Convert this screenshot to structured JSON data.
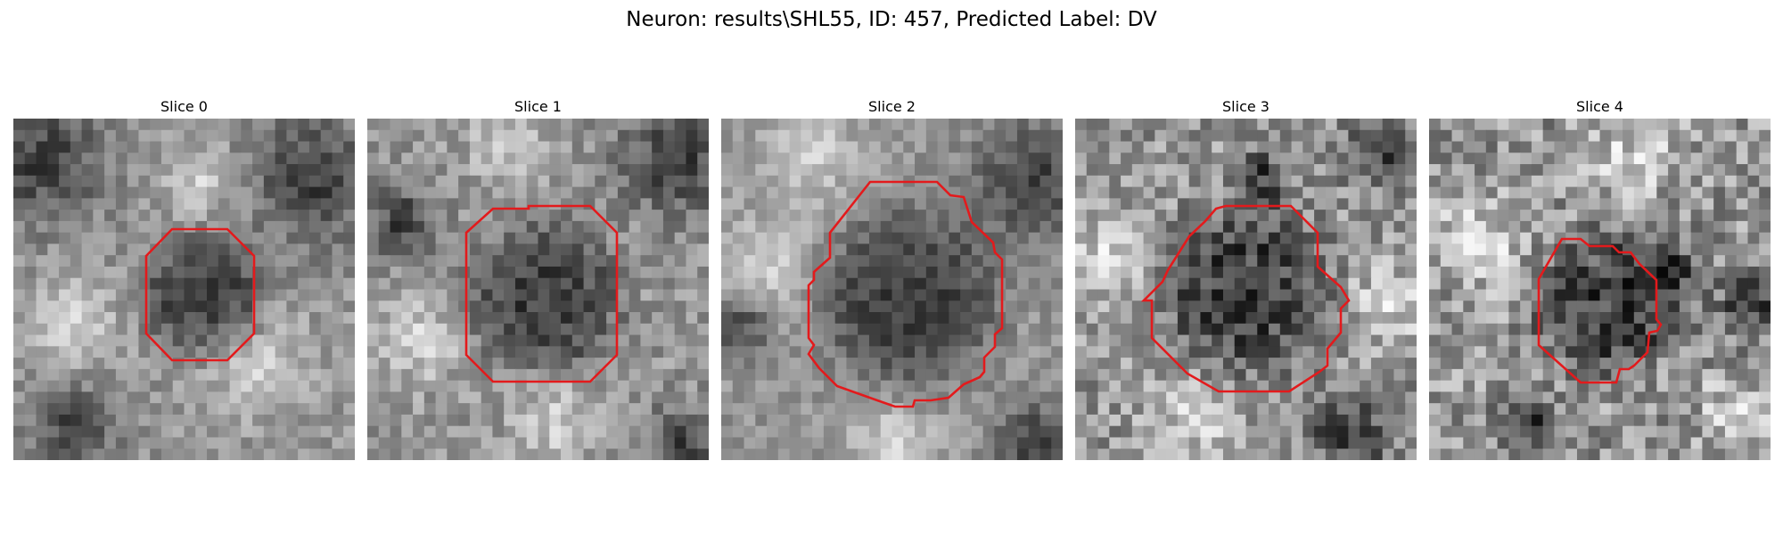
{
  "figure": {
    "title": "Neuron: results\\SHL55, ID: 457, Predicted Label: DV"
  },
  "colors": {
    "background": "#ffffff",
    "contour": "#e31a1c",
    "colormap": "gray"
  },
  "panels": [
    {
      "title": "Slice 0"
    },
    {
      "title": "Slice 1"
    },
    {
      "title": "Slice 2"
    },
    {
      "title": "Slice 3"
    },
    {
      "title": "Slice 4"
    }
  ]
}
